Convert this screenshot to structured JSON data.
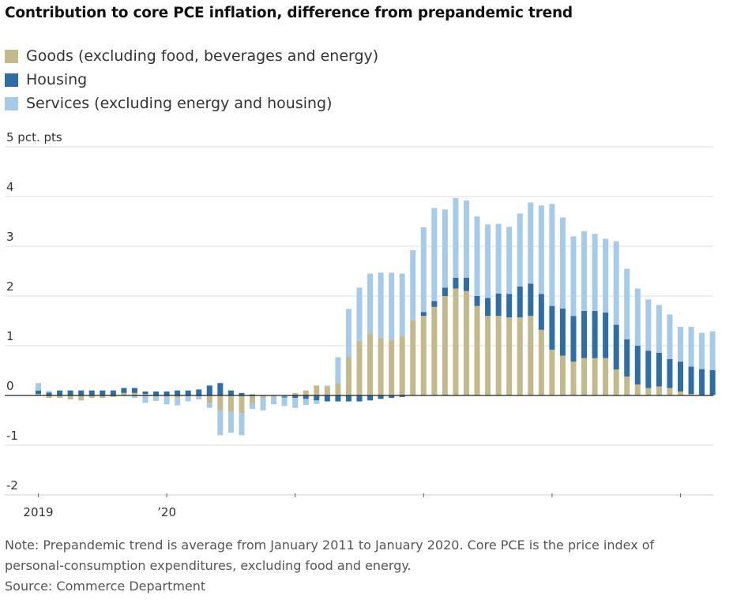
{
  "chart_data": {
    "type": "bar",
    "stacked": true,
    "title": "Contribution to core PCE inflation, difference from prepandemic trend",
    "y_unit_label": "5 pct. pts",
    "ylim": [
      -2,
      5
    ],
    "y_ticks": [
      {
        "value": 5,
        "label": "5 pct. pts"
      },
      {
        "value": 4,
        "label": "4"
      },
      {
        "value": 3,
        "label": "3"
      },
      {
        "value": 2,
        "label": "2"
      },
      {
        "value": 1,
        "label": "1"
      },
      {
        "value": 0,
        "label": "0"
      },
      {
        "value": -1,
        "label": "-1"
      },
      {
        "value": -2,
        "label": "-2"
      }
    ],
    "x_start": "2019-01",
    "x_ticks": [
      {
        "index": 0,
        "label": "2019"
      },
      {
        "index": 12,
        "label": "’20"
      },
      {
        "index": 24,
        "label": ""
      },
      {
        "index": 36,
        "label": ""
      },
      {
        "index": 48,
        "label": ""
      },
      {
        "index": 60,
        "label": ""
      }
    ],
    "grid": true,
    "legend_position": "top-left",
    "series": [
      {
        "name": "Goods (excluding food, beverages and energy)",
        "color": "#c2ba8c",
        "values": [
          0.03,
          -0.05,
          -0.05,
          -0.08,
          -0.1,
          -0.05,
          -0.05,
          -0.03,
          0.05,
          0.05,
          0.03,
          -0.03,
          -0.03,
          -0.05,
          -0.02,
          -0.03,
          -0.15,
          -0.3,
          -0.33,
          -0.35,
          -0.15,
          -0.05,
          -0.03,
          -0.02,
          0.05,
          0.1,
          0.2,
          0.18,
          0.25,
          0.77,
          1.1,
          1.25,
          1.15,
          1.12,
          1.2,
          1.52,
          1.6,
          1.78,
          2.0,
          2.15,
          2.1,
          1.8,
          1.6,
          1.6,
          1.57,
          1.57,
          1.6,
          1.32,
          0.92,
          0.8,
          0.68,
          0.75,
          0.75,
          0.75,
          0.52,
          0.38,
          0.22,
          0.15,
          0.18,
          0.15,
          0.08,
          0.03,
          0.01,
          0.01
        ]
      },
      {
        "name": "Housing",
        "color": "#2e6ea6",
        "values": [
          0.07,
          0.06,
          0.1,
          0.1,
          0.1,
          0.1,
          0.1,
          0.1,
          0.1,
          0.1,
          0.05,
          0.08,
          0.08,
          0.1,
          0.1,
          0.12,
          0.2,
          0.25,
          0.1,
          0.05,
          0.02,
          0.0,
          0.0,
          -0.02,
          -0.05,
          -0.07,
          -0.1,
          -0.12,
          -0.12,
          -0.12,
          -0.12,
          -0.1,
          -0.07,
          -0.05,
          -0.03,
          0.0,
          0.08,
          0.12,
          0.17,
          0.22,
          0.27,
          0.2,
          0.36,
          0.45,
          0.47,
          0.62,
          0.65,
          0.72,
          0.88,
          0.95,
          0.92,
          0.95,
          0.95,
          0.92,
          0.9,
          0.75,
          0.78,
          0.75,
          0.68,
          0.58,
          0.6,
          0.55,
          0.52,
          0.5
        ]
      },
      {
        "name": "Services (excluding energy and housing)",
        "color": "#a6cbe8",
        "values": [
          0.15,
          0.03,
          0.0,
          0.0,
          0.0,
          0.0,
          0.0,
          0.0,
          0.0,
          -0.05,
          -0.15,
          -0.08,
          -0.15,
          -0.15,
          -0.1,
          -0.05,
          -0.1,
          -0.5,
          -0.42,
          -0.45,
          -0.12,
          -0.25,
          -0.15,
          -0.17,
          -0.2,
          -0.12,
          -0.07,
          0.02,
          0.52,
          0.97,
          1.07,
          1.2,
          1.32,
          1.35,
          1.25,
          1.4,
          1.7,
          1.87,
          1.57,
          1.6,
          1.55,
          1.6,
          1.48,
          1.4,
          1.35,
          1.47,
          1.63,
          1.78,
          2.05,
          1.83,
          1.6,
          1.6,
          1.55,
          1.48,
          1.68,
          1.42,
          1.15,
          1.03,
          0.96,
          0.9,
          0.7,
          0.8,
          0.73,
          0.78
        ]
      }
    ]
  },
  "legend": {
    "goods": "Goods (excluding food, beverages and energy)",
    "housing": "Housing",
    "services": "Services (excluding energy and housing)"
  },
  "note": "Note: Prepandemic trend is average from January 2011 to January 2020. Core PCE is the price index of personal-consumption expenditures, excluding food and energy.",
  "source": "Source: Commerce Department"
}
